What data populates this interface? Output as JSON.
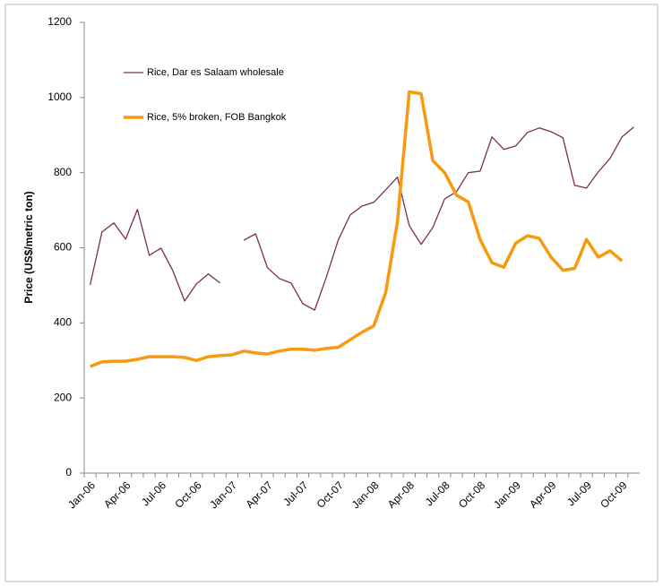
{
  "chart_data": {
    "type": "line",
    "y_label": "Price (US$/metric ton)",
    "categories": [
      "Jan-06",
      null,
      null,
      "Apr-06",
      null,
      null,
      "Jul-06",
      null,
      null,
      "Oct-06",
      null,
      null,
      "Jan-07",
      null,
      null,
      "Apr-07",
      null,
      null,
      "Jul-07",
      null,
      null,
      "Oct-07",
      null,
      null,
      "Jan-08",
      null,
      null,
      "Apr-08",
      null,
      null,
      "Jul-08",
      null,
      null,
      "Oct-08",
      null,
      null,
      "Jan-09",
      null,
      null,
      "Apr-09",
      null,
      null,
      "Jul-09",
      null,
      null,
      "Oct-09",
      null
    ],
    "series": [
      {
        "name": "Rice, Dar es Salaam wholesale",
        "color": "#7b2d5a",
        "width": 1.3,
        "values": [
          501,
          642,
          666,
          623,
          702,
          580,
          599,
          539,
          458,
          504,
          530,
          506,
          null,
          620,
          637,
          547,
          518,
          506,
          451,
          434,
          523,
          621,
          687,
          711,
          721,
          754,
          788,
          659,
          609,
          654,
          730,
          749,
          800,
          804,
          895,
          862,
          871,
          907,
          919,
          909,
          893,
          766,
          759,
          802,
          838,
          895,
          921
        ]
      },
      {
        "name": "Rice, 5% broken, FOB Bangkok",
        "color": "#f79a0e",
        "width": 3.5,
        "values": [
          284,
          296,
          298,
          298,
          303,
          310,
          310,
          310,
          308,
          300,
          310,
          313,
          315,
          325,
          320,
          317,
          325,
          330,
          330,
          327,
          332,
          335,
          355,
          375,
          392,
          480,
          670,
          1015,
          1010,
          832,
          800,
          740,
          722,
          622,
          560,
          548,
          612,
          632,
          625,
          575,
          540,
          545,
          622,
          575,
          592,
          565,
          null
        ]
      }
    ],
    "ylim": [
      0,
      1200
    ],
    "yticks": [
      0,
      200,
      400,
      600,
      800,
      1000,
      1200
    ],
    "grid": false
  }
}
